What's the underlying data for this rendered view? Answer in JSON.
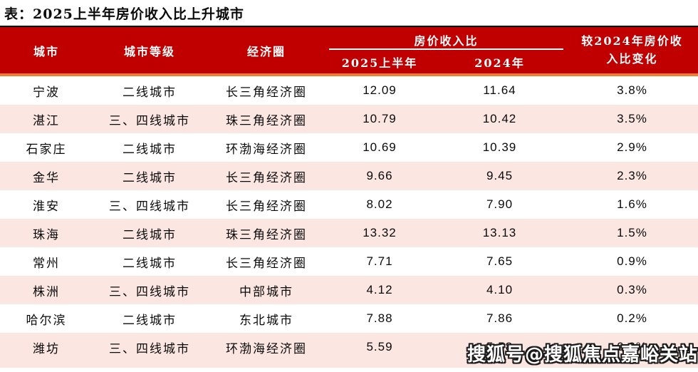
{
  "title": "表：2025上半年房价收入比上升城市",
  "colors": {
    "header_bg": "#C00000",
    "accent_line": "#ED7D31",
    "row_alt_bg": "#FBE6E2",
    "top_rule": "#000000",
    "header_text": "#FFFFFF"
  },
  "table": {
    "col_city": "城市",
    "col_tier": "城市等级",
    "col_circle": "经济圈",
    "group_ratio": "房价收入比",
    "col_2025h1": "2025上半年",
    "col_2024": "2024年",
    "col_change": "较2024年房价收入比变化",
    "rows": [
      {
        "city": "宁波",
        "tier": "二线城市",
        "circle": "长三角经济圈",
        "h1_2025": "12.09",
        "y2024": "11.64",
        "change": "3.8%"
      },
      {
        "city": "湛江",
        "tier": "三、四线城市",
        "circle": "珠三角经济圈",
        "h1_2025": "10.79",
        "y2024": "10.42",
        "change": "3.5%"
      },
      {
        "city": "石家庄",
        "tier": "二线城市",
        "circle": "环渤海经济圈",
        "h1_2025": "10.69",
        "y2024": "10.39",
        "change": "2.9%"
      },
      {
        "city": "金华",
        "tier": "二线城市",
        "circle": "长三角经济圈",
        "h1_2025": "9.66",
        "y2024": "9.45",
        "change": "2.3%"
      },
      {
        "city": "淮安",
        "tier": "三、四线城市",
        "circle": "长三角经济圈",
        "h1_2025": "8.02",
        "y2024": "7.90",
        "change": "1.6%"
      },
      {
        "city": "珠海",
        "tier": "二线城市",
        "circle": "珠三角经济圈",
        "h1_2025": "13.32",
        "y2024": "13.13",
        "change": "1.5%"
      },
      {
        "city": "常州",
        "tier": "二线城市",
        "circle": "长三角经济圈",
        "h1_2025": "7.71",
        "y2024": "7.65",
        "change": "0.9%"
      },
      {
        "city": "株洲",
        "tier": "三、四线城市",
        "circle": "中部城市",
        "h1_2025": "4.12",
        "y2024": "4.10",
        "change": "0.3%"
      },
      {
        "city": "哈尔滨",
        "tier": "二线城市",
        "circle": "东北城市",
        "h1_2025": "7.88",
        "y2024": "7.86",
        "change": "0.2%"
      },
      {
        "city": "潍坊",
        "tier": "三、四线城市",
        "circle": "环渤海经济圈",
        "h1_2025": "5.59",
        "y2024": "5.58",
        "change": "0.2%"
      }
    ]
  },
  "watermark": "搜狐号@搜狐焦点嘉峪关站"
}
